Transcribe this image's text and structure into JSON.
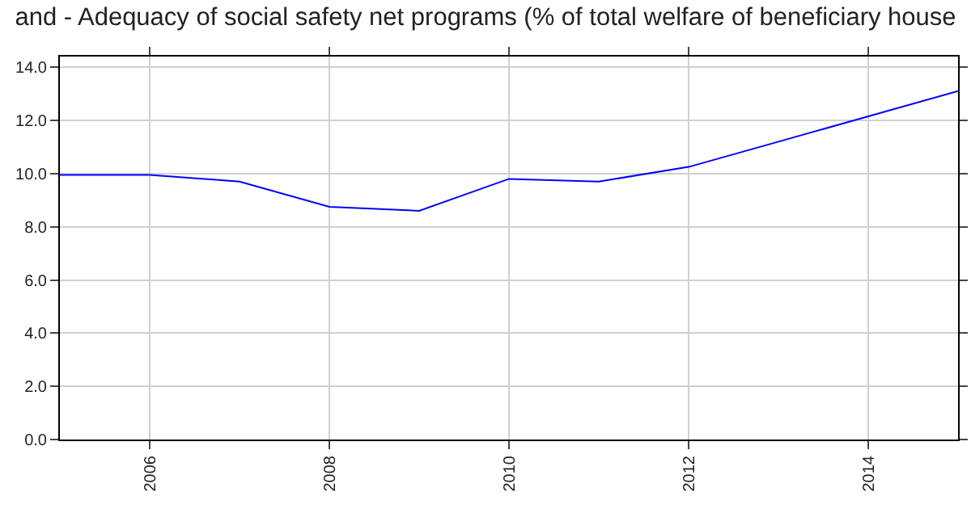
{
  "chart_data": {
    "type": "line",
    "title": "and - Adequacy of social safety net programs (% of total welfare of beneficiary house",
    "x": [
      2005,
      2006,
      2007,
      2008,
      2009,
      2010,
      2011,
      2012,
      2013,
      2014,
      2015
    ],
    "series": [
      {
        "color": "#0000ff",
        "values": [
          9.95,
          9.95,
          9.7,
          8.75,
          8.6,
          9.8,
          9.7,
          10.25,
          11.2,
          12.15,
          13.1
        ]
      }
    ],
    "xlim": [
      2005,
      2015
    ],
    "xticks": [
      2006,
      2008,
      2010,
      2012,
      2014
    ],
    "ylim": [
      0,
      14.4
    ],
    "yticks": [
      {
        "value": 0,
        "label": "0.0"
      },
      {
        "value": 2,
        "label": "2.0"
      },
      {
        "value": 4,
        "label": "4.0"
      },
      {
        "value": 6,
        "label": "6.0"
      },
      {
        "value": 8,
        "label": "8.0"
      },
      {
        "value": 10,
        "label": "10.0"
      },
      {
        "value": 12,
        "label": "12.0"
      },
      {
        "value": 14,
        "label": "14.0"
      }
    ],
    "grid": true,
    "marker": "none",
    "line_style": "solid"
  }
}
